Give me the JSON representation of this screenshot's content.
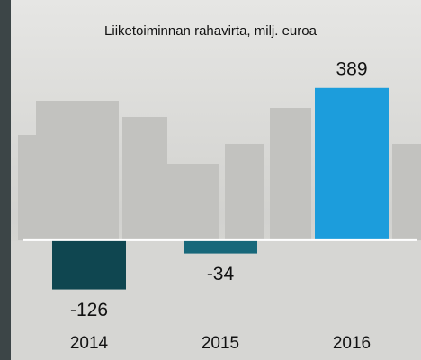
{
  "chart_data": {
    "type": "bar",
    "title": "Liiketoiminnan rahavirta, milj. euroa",
    "categories": [
      "2014",
      "2015",
      "2016"
    ],
    "values": [
      -126,
      -34,
      389
    ],
    "colors": [
      "#0f4650",
      "#17687a",
      "#1c9ddc"
    ],
    "ylim": [
      -150,
      400
    ]
  }
}
